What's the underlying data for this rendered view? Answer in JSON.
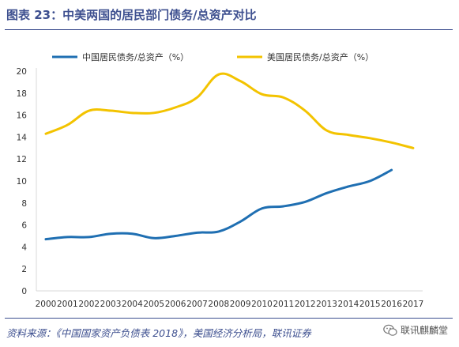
{
  "header": {
    "title": "图表 23：中美两国的居民部门债务/总资产对比"
  },
  "footer": {
    "source": "资料来源：《中国国家资产负债表 2018》，美国经济分析局，联讯证券",
    "watermark": "联讯麒麟堂",
    "watermark_icon": "wechat-icon"
  },
  "chart_data": {
    "type": "line",
    "title": "",
    "xlabel": "",
    "ylabel": "",
    "categories": [
      "2000",
      "2001",
      "2002",
      "2003",
      "2004",
      "2005",
      "2006",
      "2007",
      "2008",
      "2009",
      "2010",
      "2011",
      "2012",
      "2013",
      "2014",
      "2015",
      "2016",
      "2017"
    ],
    "ylim": [
      0,
      20
    ],
    "yticks": [
      0,
      2,
      4,
      6,
      8,
      10,
      12,
      14,
      16,
      18,
      20
    ],
    "grid": false,
    "legend_position": "top",
    "series": [
      {
        "name": "中国居民债务/总资产（%）",
        "color": "#1f6fb2",
        "values": [
          4.7,
          4.9,
          4.9,
          5.2,
          5.2,
          4.8,
          5.0,
          5.3,
          5.4,
          6.3,
          7.5,
          7.7,
          8.1,
          8.9,
          9.5,
          10.0,
          11.0,
          null
        ]
      },
      {
        "name": "美国居民债务/总资产（%）",
        "color": "#f3c300",
        "values": [
          14.3,
          15.1,
          16.4,
          16.4,
          16.2,
          16.2,
          16.7,
          17.6,
          19.7,
          19.1,
          17.9,
          17.6,
          16.4,
          14.6,
          14.2,
          13.9,
          13.5,
          13.0
        ]
      }
    ]
  }
}
